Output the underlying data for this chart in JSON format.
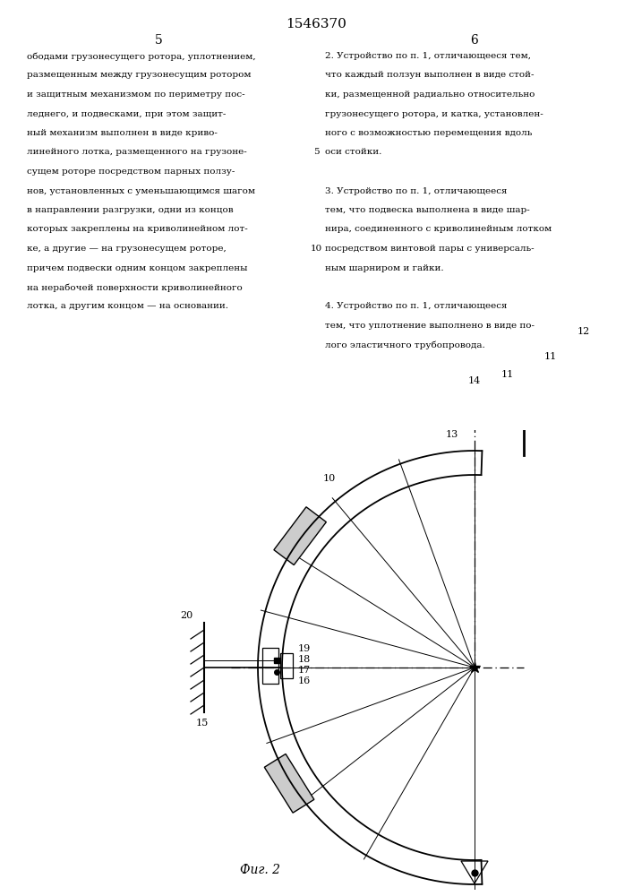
{
  "patent_number": "1546370",
  "page_left": "5",
  "page_right": "6",
  "text_left_lines": [
    "ободами грузонесущего ротора, уплотнением,",
    "размещенным между грузонесущим ротором",
    "и защитным механизмом по периметру пос-",
    "леднего, и подвесками, при этом защит-",
    "ный механизм выполнен в виде криво-",
    "линейного лотка, размещенного на грузоне-",
    "сущем роторе посредством парных ползу-",
    "нов, установленных с уменьшающимся шагом",
    "в направлении разгрузки, одни из концов",
    "которых закреплены на криволинейном лот-",
    "ке, а другие — на грузонесущем роторе,",
    "причем подвески одним концом закреплены",
    "на нерабочей поверхности криволинейного",
    "лотка, а другим концом — на основании."
  ],
  "text_right_lines": [
    "2. Устройство по п. 1, отличающееся тем,",
    "что каждый ползун выполнен в виде стой-",
    "ки, размещенной радиально относительно",
    "грузонесущего ротора, и катка, установлен-",
    "ного с возможностью перемещения вдоль",
    "оси стойки.",
    "",
    "3. Устройство по п. 1, отличающееся",
    "тем, что подвеска выполнена в виде шар-",
    "нира, соединенного с криволинейным лотком",
    "посредством винтовой пары с универсаль-",
    "ным шарниром и гайки.",
    "",
    "4. Устройство по п. 1, отличающееся",
    "тем, что уплотнение выполнено в виде по-",
    "лого эластичного трубопровода."
  ],
  "fig_caption": "Фиг. 2",
  "background_color": "#ffffff",
  "line_color": "#000000",
  "text_color": "#000000"
}
